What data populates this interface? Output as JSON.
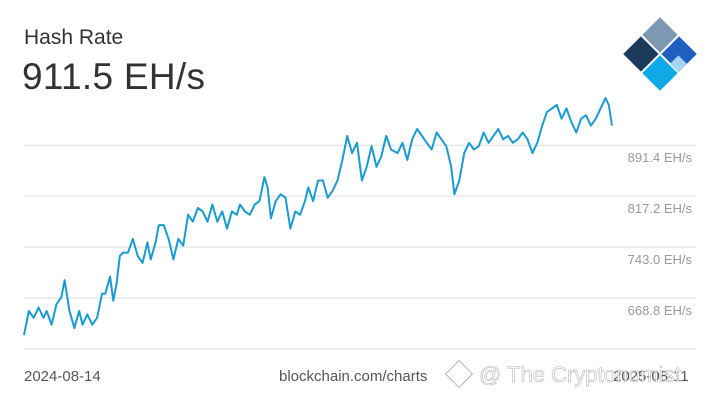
{
  "header": {
    "title": "Hash Rate",
    "current_value": "911.5 EH/s"
  },
  "footer": {
    "start_date": "2024-08-14",
    "source": "blockchain.com/charts",
    "end_date": "2025-08-11"
  },
  "watermark": {
    "text": "@ The Cryptonomist",
    "icon": "binance-diamond-icon"
  },
  "logo": {
    "icon": "blockchain-com-logo-icon",
    "colors": [
      "#7c98b3",
      "#1b3a5c",
      "#1e5fc0",
      "#10a9e8",
      "#a9d3f3"
    ]
  },
  "colors": {
    "line": "#1a9bd0",
    "grid": "#dddddd",
    "axis_label": "#999999",
    "text": "#333333"
  },
  "chart_data": {
    "type": "line",
    "x_range": [
      "2024-08-14",
      "2025-08-11"
    ],
    "ylim": [
      594.6,
      950
    ],
    "y_ticks": [
      {
        "value": 891.4,
        "label": "891.4 EH/s"
      },
      {
        "value": 817.2,
        "label": "817.2 EH/s"
      },
      {
        "value": 743.0,
        "label": "743.0 EH/s"
      },
      {
        "value": 668.8,
        "label": "668.8 EH/s"
      }
    ],
    "grid": true,
    "y_axis_position": "right",
    "series": [
      {
        "points": [
          [
            "2024-08-14",
            615
          ],
          [
            "2024-08-17",
            650
          ],
          [
            "2024-08-20",
            640
          ],
          [
            "2024-08-23",
            655
          ],
          [
            "2024-08-26",
            640
          ],
          [
            "2024-08-28",
            650
          ],
          [
            "2024-08-31",
            630
          ],
          [
            "2024-09-03",
            660
          ],
          [
            "2024-09-06",
            670
          ],
          [
            "2024-09-08",
            695
          ],
          [
            "2024-09-11",
            650
          ],
          [
            "2024-09-14",
            625
          ],
          [
            "2024-09-17",
            650
          ],
          [
            "2024-09-19",
            630
          ],
          [
            "2024-09-22",
            645
          ],
          [
            "2024-09-25",
            630
          ],
          [
            "2024-09-28",
            640
          ],
          [
            "2024-10-01",
            675
          ],
          [
            "2024-10-03",
            675
          ],
          [
            "2024-10-06",
            700
          ],
          [
            "2024-10-08",
            665
          ],
          [
            "2024-10-10",
            690
          ],
          [
            "2024-10-12",
            730
          ],
          [
            "2024-10-14",
            735
          ],
          [
            "2024-10-17",
            735
          ],
          [
            "2024-10-20",
            755
          ],
          [
            "2024-10-23",
            730
          ],
          [
            "2024-10-26",
            720
          ],
          [
            "2024-10-29",
            750
          ],
          [
            "2024-10-31",
            725
          ],
          [
            "2024-11-03",
            750
          ],
          [
            "2024-11-05",
            775
          ],
          [
            "2024-11-08",
            775
          ],
          [
            "2024-11-11",
            755
          ],
          [
            "2024-11-14",
            725
          ],
          [
            "2024-11-17",
            755
          ],
          [
            "2024-11-20",
            745
          ],
          [
            "2024-11-23",
            790
          ],
          [
            "2024-11-26",
            780
          ],
          [
            "2024-11-29",
            800
          ],
          [
            "2024-12-02",
            795
          ],
          [
            "2024-12-05",
            780
          ],
          [
            "2024-12-08",
            805
          ],
          [
            "2024-12-11",
            780
          ],
          [
            "2024-12-14",
            795
          ],
          [
            "2024-12-17",
            770
          ],
          [
            "2024-12-20",
            795
          ],
          [
            "2024-12-23",
            790
          ],
          [
            "2024-12-25",
            805
          ],
          [
            "2024-12-28",
            795
          ],
          [
            "2024-12-31",
            790
          ],
          [
            "2025-01-03",
            805
          ],
          [
            "2025-01-06",
            810
          ],
          [
            "2025-01-09",
            845
          ],
          [
            "2025-01-11",
            830
          ],
          [
            "2025-01-13",
            785
          ],
          [
            "2025-01-16",
            810
          ],
          [
            "2025-01-19",
            820
          ],
          [
            "2025-01-22",
            815
          ],
          [
            "2025-01-25",
            770
          ],
          [
            "2025-01-28",
            795
          ],
          [
            "2025-01-31",
            790
          ],
          [
            "2025-02-03",
            810
          ],
          [
            "2025-02-05",
            830
          ],
          [
            "2025-02-08",
            810
          ],
          [
            "2025-02-11",
            840
          ],
          [
            "2025-02-14",
            840
          ],
          [
            "2025-02-17",
            815
          ],
          [
            "2025-02-20",
            825
          ],
          [
            "2025-02-23",
            840
          ],
          [
            "2025-02-26",
            870
          ],
          [
            "2025-03-01",
            905
          ],
          [
            "2025-03-04",
            880
          ],
          [
            "2025-03-07",
            895
          ],
          [
            "2025-03-10",
            840
          ],
          [
            "2025-03-13",
            860
          ],
          [
            "2025-03-16",
            890
          ],
          [
            "2025-03-19",
            860
          ],
          [
            "2025-03-22",
            875
          ],
          [
            "2025-03-25",
            905
          ],
          [
            "2025-03-28",
            885
          ],
          [
            "2025-04-01",
            880
          ],
          [
            "2025-04-04",
            895
          ],
          [
            "2025-04-07",
            870
          ],
          [
            "2025-04-10",
            900
          ],
          [
            "2025-04-13",
            915
          ],
          [
            "2025-04-16",
            905
          ],
          [
            "2025-04-19",
            895
          ],
          [
            "2025-04-22",
            885
          ],
          [
            "2025-04-25",
            910
          ],
          [
            "2025-04-28",
            900
          ],
          [
            "2025-05-01",
            890
          ],
          [
            "2025-05-04",
            860
          ],
          [
            "2025-05-06",
            820
          ],
          [
            "2025-05-09",
            840
          ],
          [
            "2025-05-12",
            880
          ],
          [
            "2025-05-15",
            895
          ],
          [
            "2025-05-18",
            885
          ],
          [
            "2025-05-21",
            890
          ],
          [
            "2025-05-24",
            910
          ],
          [
            "2025-05-27",
            895
          ],
          [
            "2025-05-30",
            905
          ],
          [
            "2025-06-02",
            915
          ],
          [
            "2025-06-05",
            900
          ],
          [
            "2025-06-08",
            905
          ],
          [
            "2025-06-11",
            895
          ],
          [
            "2025-06-14",
            900
          ],
          [
            "2025-06-17",
            910
          ],
          [
            "2025-06-20",
            900
          ],
          [
            "2025-06-23",
            880
          ],
          [
            "2025-06-26",
            895
          ],
          [
            "2025-06-29",
            920
          ],
          [
            "2025-07-02",
            940
          ],
          [
            "2025-07-05",
            945
          ],
          [
            "2025-07-08",
            950
          ],
          [
            "2025-07-11",
            930
          ],
          [
            "2025-07-14",
            945
          ],
          [
            "2025-07-17",
            925
          ],
          [
            "2025-07-20",
            910
          ],
          [
            "2025-07-23",
            930
          ],
          [
            "2025-07-26",
            935
          ],
          [
            "2025-07-29",
            920
          ],
          [
            "2025-08-01",
            930
          ],
          [
            "2025-08-04",
            945
          ],
          [
            "2025-08-07",
            960
          ],
          [
            "2025-08-09",
            950
          ],
          [
            "2025-08-11",
            920
          ]
        ]
      }
    ]
  }
}
